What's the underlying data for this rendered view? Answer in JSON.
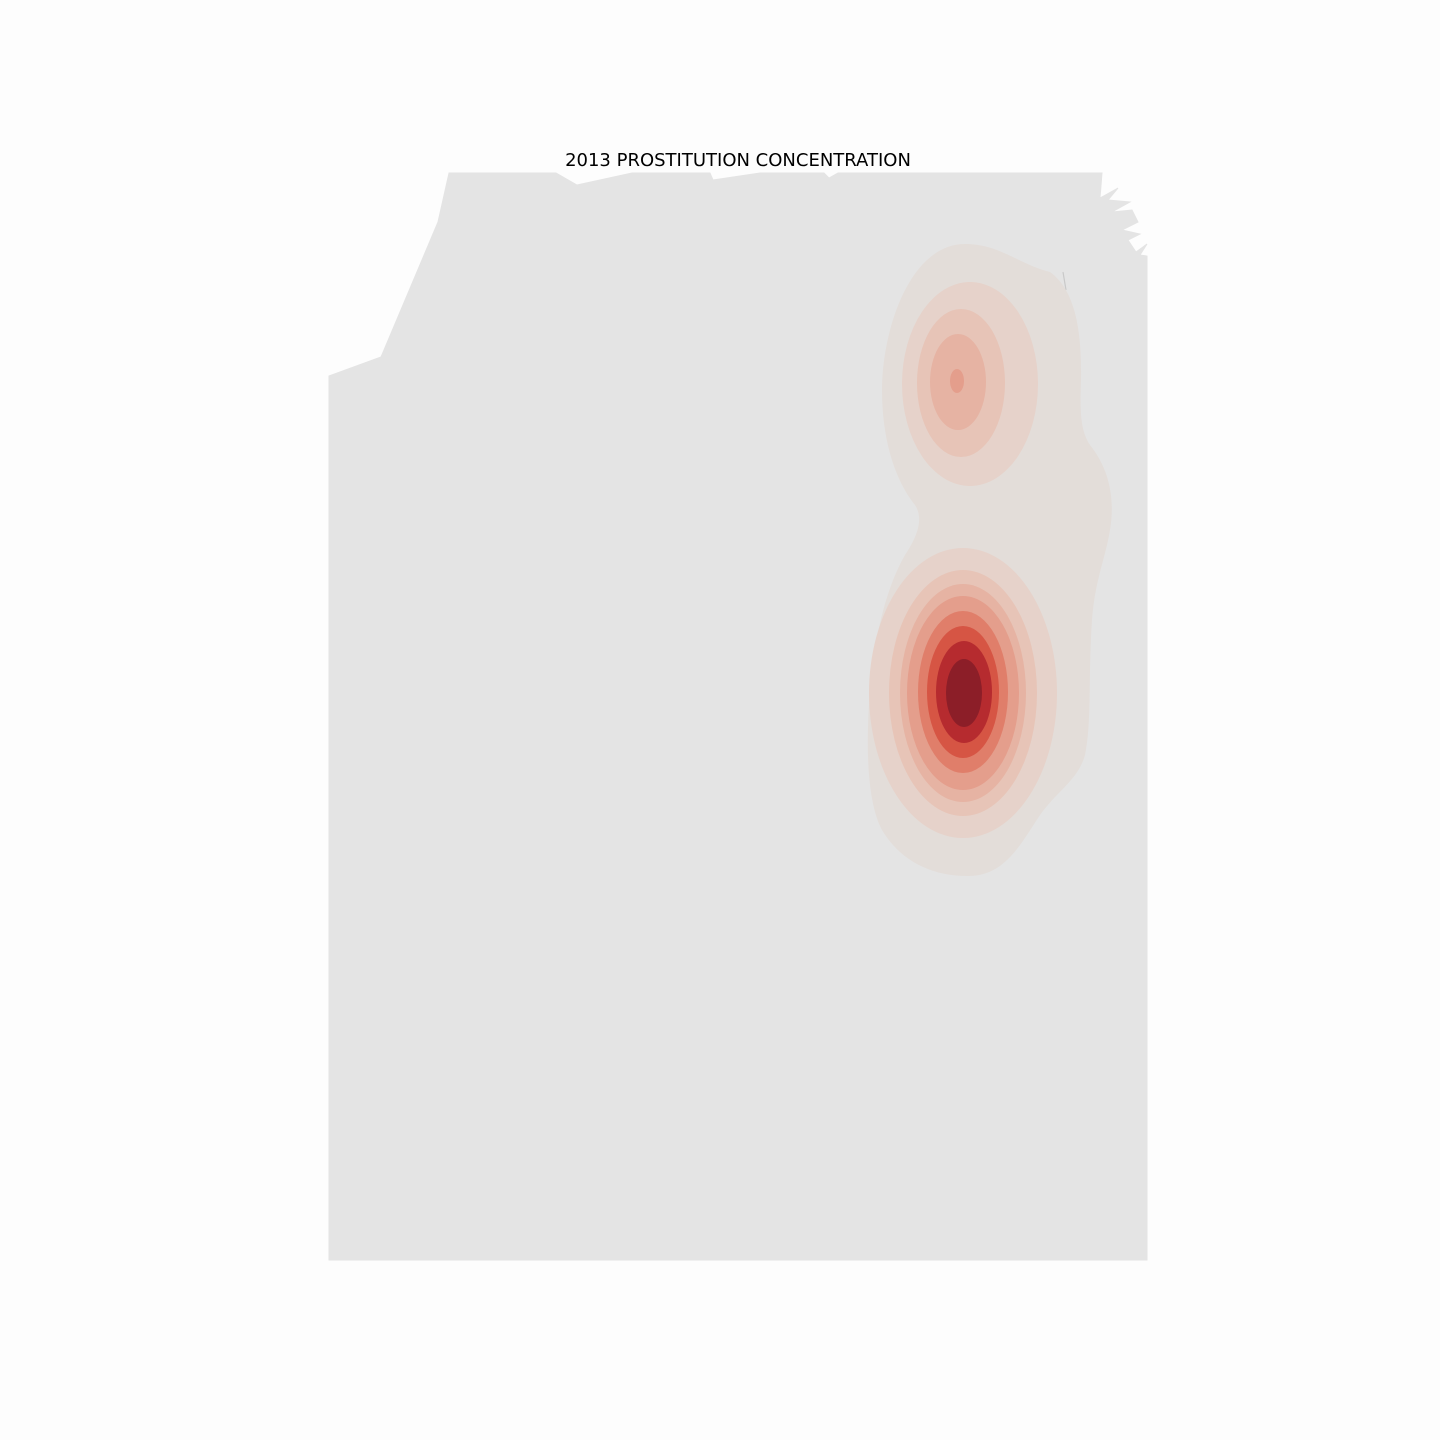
{
  "title": "2013 PROSTITUTION CONCENTRATION",
  "map": {
    "year": "2013",
    "offense": "PROSTITUTION",
    "land_color": "#e4e4e4",
    "boundary_color": "#d2d2d2",
    "background_color": "#fdfdfd",
    "density_colormap": [
      "#e3ddd9",
      "#e6d2ca",
      "#e7c4b7",
      "#e6b3a3",
      "#e49e8c",
      "#e07e6a",
      "#d65544",
      "#b62b2f",
      "#8c1e28"
    ],
    "hotspots": [
      {
        "name": "primary-hotspot",
        "levels": 9
      },
      {
        "name": "secondary-hotspot",
        "levels": 5
      }
    ]
  }
}
